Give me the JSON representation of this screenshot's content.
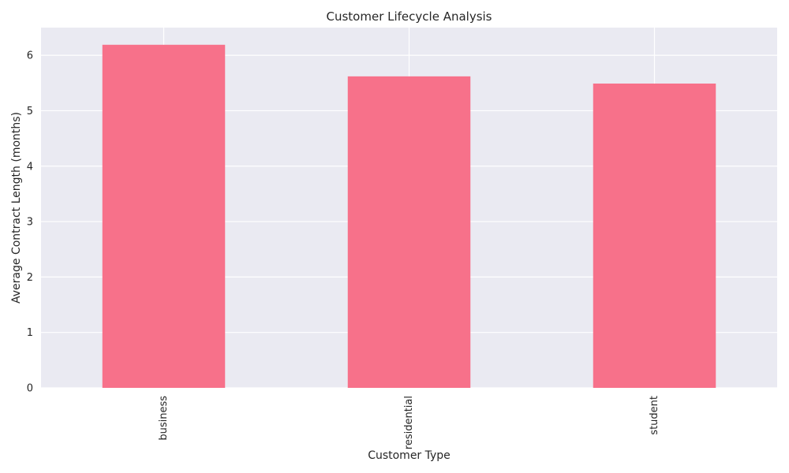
{
  "chart_data": {
    "type": "bar",
    "title": "Customer Lifecycle Analysis",
    "xlabel": "Customer Type",
    "ylabel": "Average Contract Length (months)",
    "categories": [
      "business",
      "residential",
      "student"
    ],
    "values": [
      6.19,
      5.62,
      5.49
    ],
    "ylim": [
      0,
      6.5
    ],
    "yticks": [
      0,
      1,
      2,
      3,
      4,
      5,
      6
    ],
    "grid": true,
    "legend": "none",
    "bar_color": "#f7718a",
    "plot_background": "#eaeaf2",
    "grid_color": "#ffffff",
    "xtick_rotation": "vertical"
  }
}
